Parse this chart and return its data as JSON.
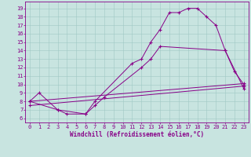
{
  "bg_color": "#c8e4e0",
  "line_color": "#880088",
  "grid_color": "#a0c8c4",
  "xlabel": "Windchill (Refroidissement éolien,°C)",
  "xlim": [
    -0.5,
    23.5
  ],
  "ylim": [
    5.5,
    19.8
  ],
  "xticks": [
    0,
    1,
    2,
    3,
    4,
    5,
    6,
    7,
    8,
    9,
    10,
    11,
    12,
    13,
    14,
    15,
    16,
    17,
    18,
    19,
    20,
    21,
    22,
    23
  ],
  "yticks": [
    6,
    7,
    8,
    9,
    10,
    11,
    12,
    13,
    14,
    15,
    16,
    17,
    18,
    19
  ],
  "line1_x": [
    0,
    1,
    3,
    4,
    6,
    7,
    11,
    12,
    13,
    14,
    15,
    16,
    17,
    18,
    19,
    20,
    21,
    22,
    23
  ],
  "line1_y": [
    8.0,
    9.0,
    7.0,
    6.5,
    6.5,
    8.0,
    12.5,
    13.0,
    15.0,
    16.5,
    18.5,
    18.5,
    19.0,
    19.0,
    18.0,
    17.0,
    14.0,
    11.5,
    10.0
  ],
  "line2_x": [
    0,
    3,
    6,
    7,
    8,
    12,
    13,
    14,
    21,
    23
  ],
  "line2_y": [
    8.0,
    7.0,
    6.5,
    7.5,
    8.5,
    12.0,
    13.0,
    14.5,
    14.0,
    9.5
  ],
  "line3_x": [
    0,
    23
  ],
  "line3_y": [
    7.5,
    9.8
  ],
  "line4_x": [
    0,
    23
  ],
  "line4_y": [
    8.0,
    10.1
  ],
  "font_size_label": 5.5,
  "font_size_tick": 5.0,
  "lw": 0.7,
  "ms": 2.8
}
